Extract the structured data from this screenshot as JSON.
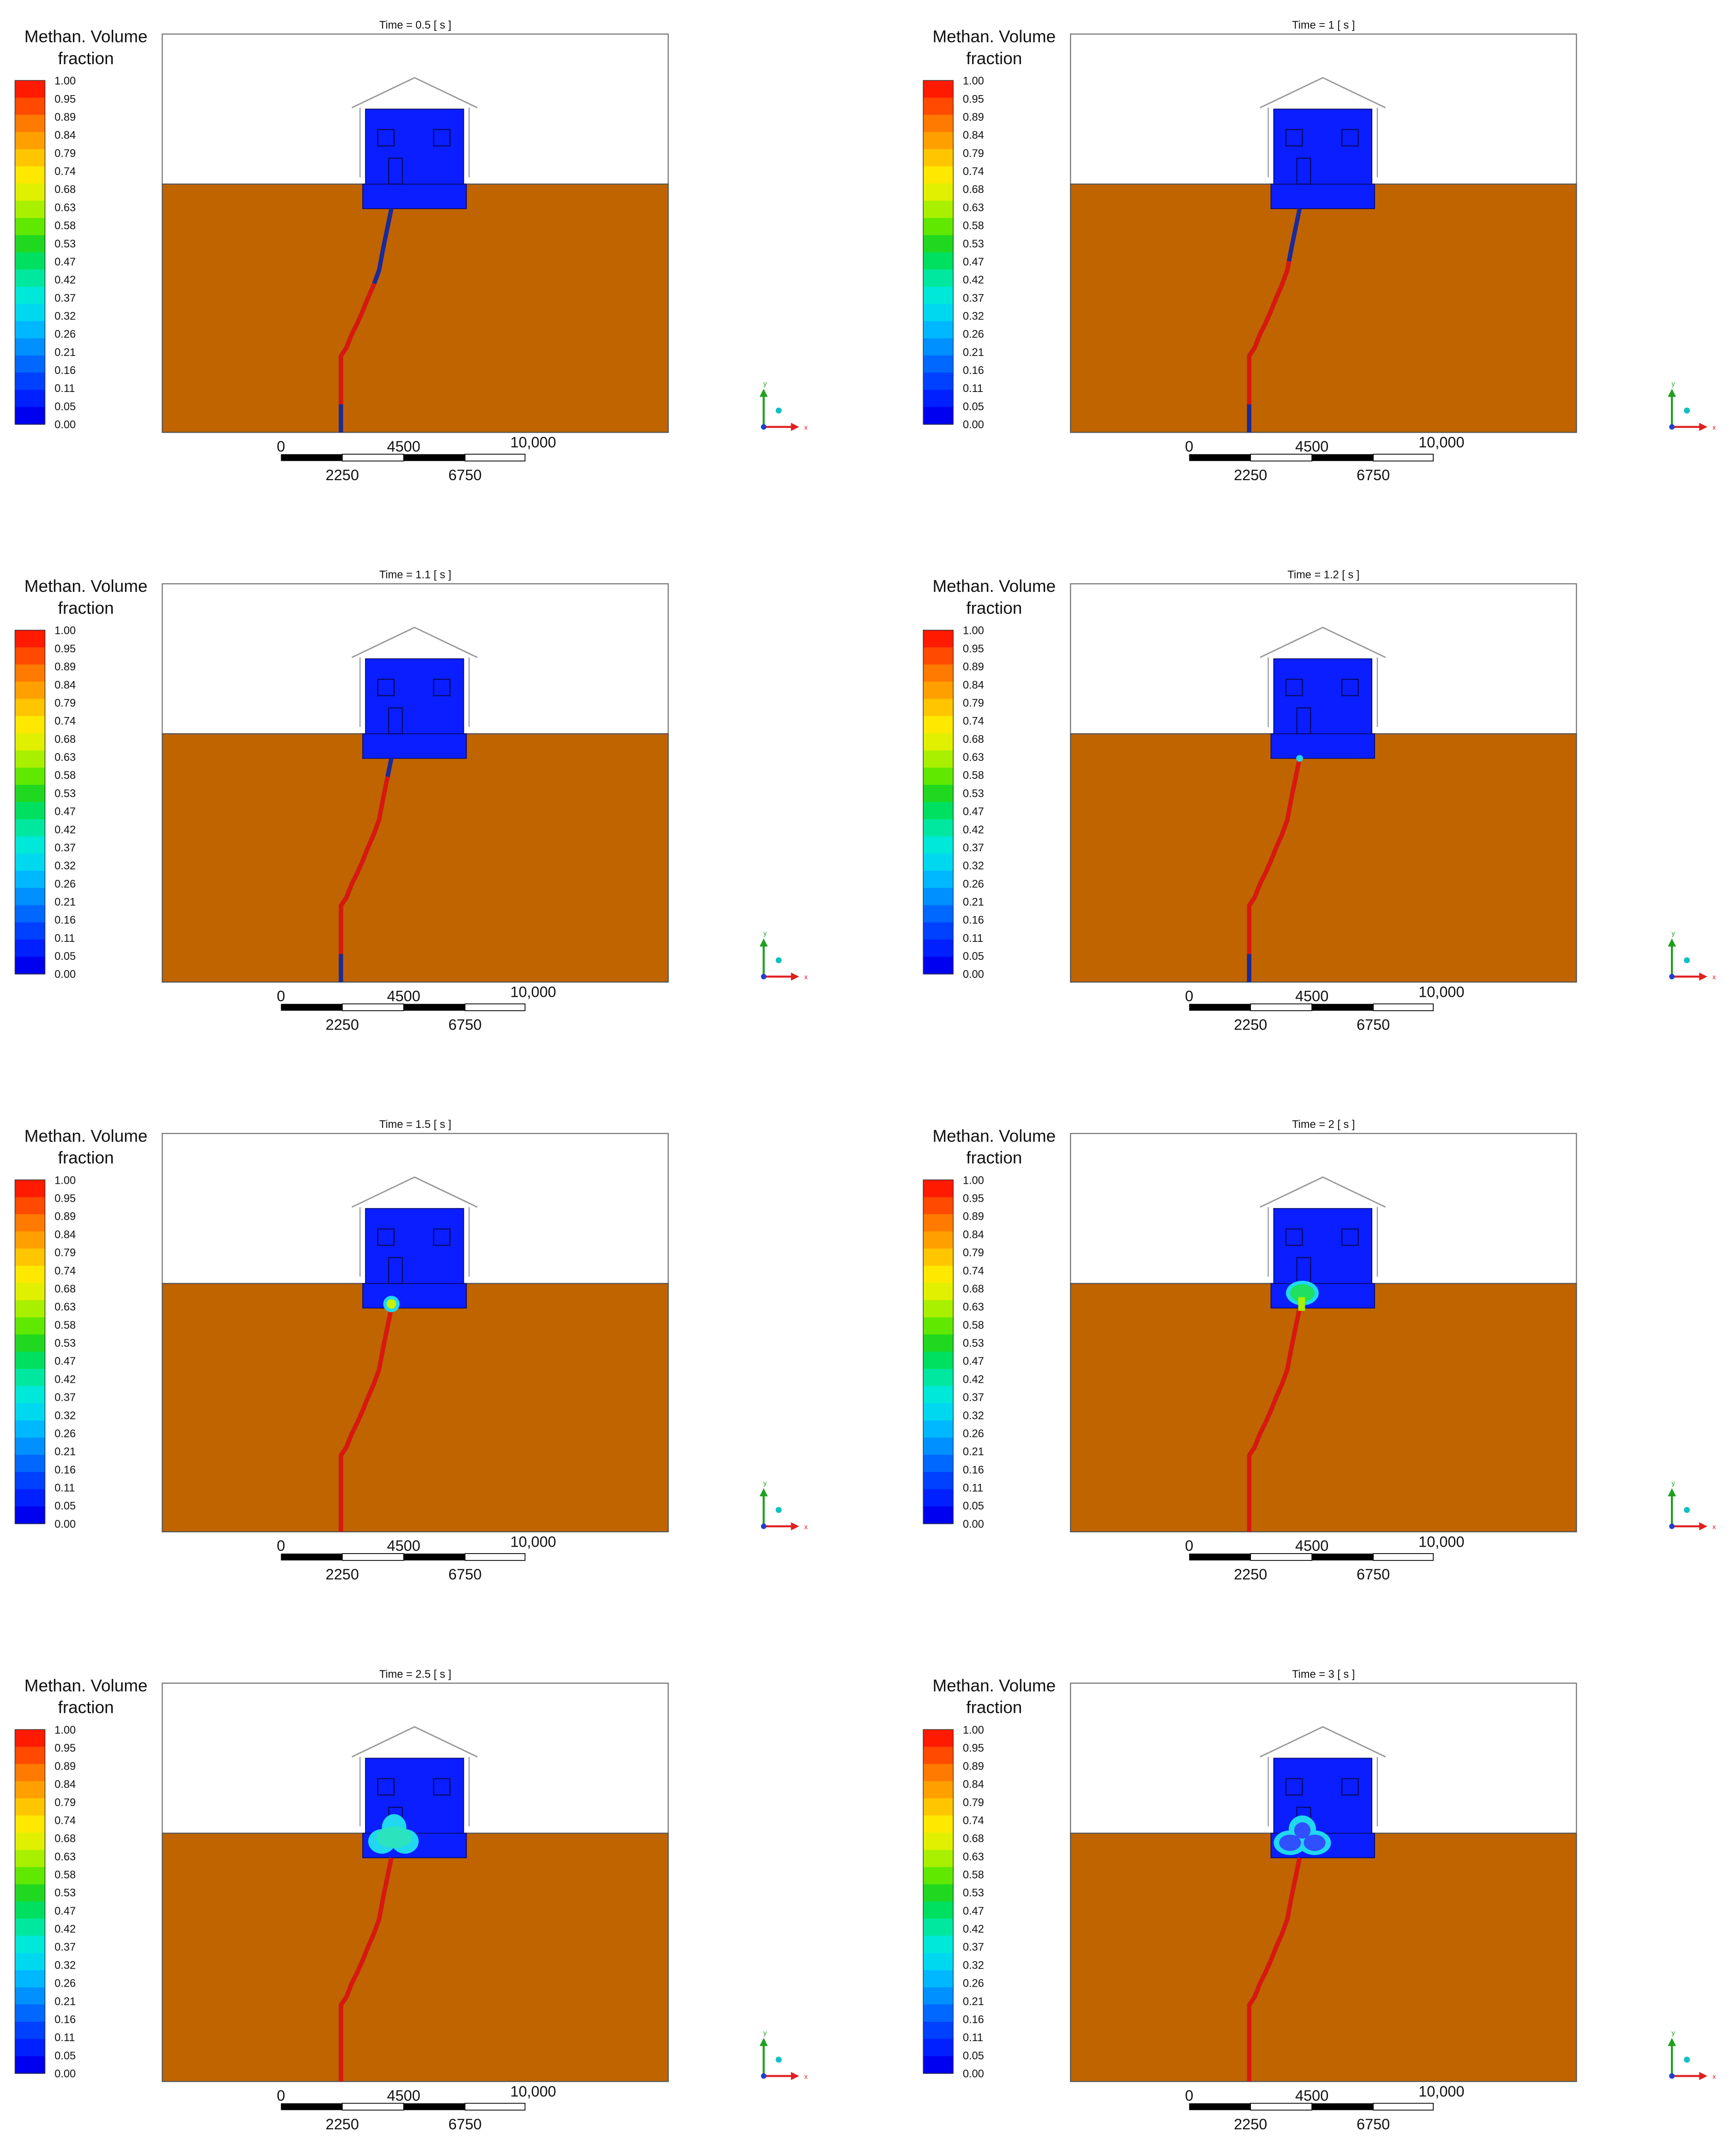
{
  "figure": {
    "legend_title_line1": "Methan. Volume",
    "legend_title_line2": "fraction",
    "legend_ticks": [
      "1.00",
      "0.95",
      "0.89",
      "0.84",
      "0.79",
      "0.74",
      "0.68",
      "0.63",
      "0.58",
      "0.53",
      "0.47",
      "0.42",
      "0.37",
      "0.32",
      "0.26",
      "0.21",
      "0.16",
      "0.11",
      "0.05",
      "0.00"
    ],
    "legend_colors": [
      "#ff1a00",
      "#ff4a00",
      "#ff7a00",
      "#ffa000",
      "#ffc600",
      "#ffe800",
      "#e0f000",
      "#a8f000",
      "#60e800",
      "#20d820",
      "#00e060",
      "#00e8a0",
      "#00e8d8",
      "#00d8f0",
      "#00b8ff",
      "#0090ff",
      "#0068ff",
      "#0040ff",
      "#0020ff",
      "#0000f0"
    ],
    "scale_labels_top": [
      "0",
      "4500",
      "10,000"
    ],
    "scale_labels_bottom": [
      "2250",
      "6750"
    ],
    "axis_y_label": "y",
    "axis_x_label": "x",
    "colors": {
      "ground": "#c06400",
      "building": "#0a1eff",
      "pipe_gas": "#d81810",
      "pipe_empty": "#1a2a9a",
      "plume_edge": "#20d8f0",
      "plume_core": "#20e060",
      "roof_line": "#999999"
    },
    "panels": [
      {
        "time_label": "Time = 0.5 [ s ]",
        "gas_fill_fraction": 0.55,
        "plume_level": 0
      },
      {
        "time_label": "Time = 1 [ s ]",
        "gas_fill_fraction": 0.65,
        "plume_level": 0
      },
      {
        "time_label": "Time = 1.1 [ s ]",
        "gas_fill_fraction": 0.8,
        "plume_level": 0
      },
      {
        "time_label": "Time = 1.2 [ s ]",
        "gas_fill_fraction": 0.95,
        "plume_level": 1
      },
      {
        "time_label": "Time = 1.5 [ s ]",
        "gas_fill_fraction": 1.0,
        "plume_level": 2
      },
      {
        "time_label": "Time = 2 [ s ]",
        "gas_fill_fraction": 1.0,
        "plume_level": 3
      },
      {
        "time_label": "Time = 2.5 [ s ]",
        "gas_fill_fraction": 1.0,
        "plume_level": 4
      },
      {
        "time_label": "Time = 3 [ s ]",
        "gas_fill_fraction": 1.0,
        "plume_level": 5
      }
    ]
  }
}
